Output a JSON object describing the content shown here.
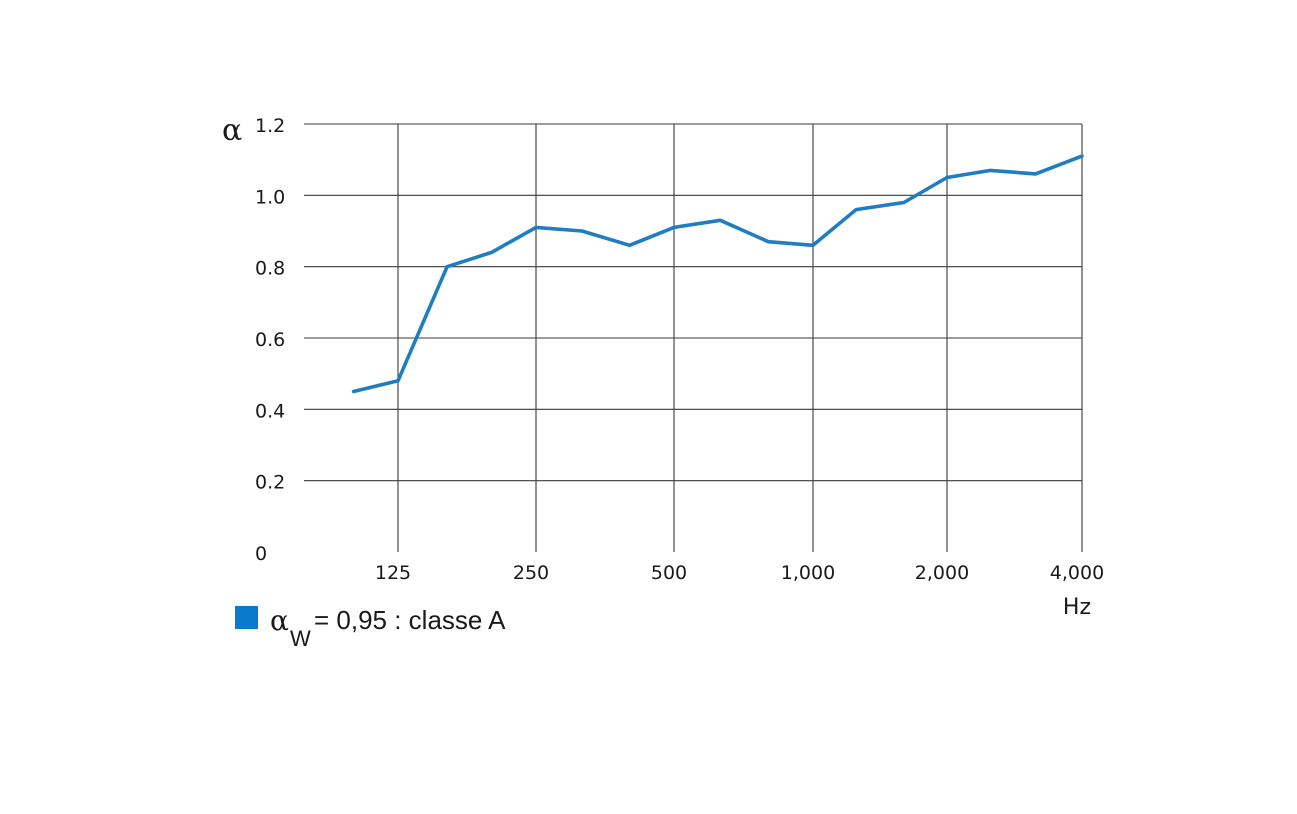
{
  "chart_data": {
    "type": "line",
    "y_symbol": "α",
    "xlabel": "Hz",
    "x_tick_labels": [
      "125",
      "250",
      "500",
      "1,000",
      "2,000",
      "4,000"
    ],
    "y_tick_labels": [
      "0",
      "0.2",
      "0.4",
      "0.6",
      "0.8",
      "1.0",
      "1.2"
    ],
    "ylim": [
      0,
      1.2
    ],
    "x_scale": "log (third-octave bands)",
    "grid": true,
    "series": [
      {
        "color": "#1f7ec2",
        "x": [
          100,
          125,
          160,
          200,
          250,
          315,
          400,
          500,
          630,
          800,
          1000,
          1250,
          1600,
          2000,
          2500,
          3150,
          4000
        ],
        "values": [
          0.45,
          0.48,
          0.8,
          0.84,
          0.91,
          0.9,
          0.86,
          0.91,
          0.93,
          0.87,
          0.86,
          0.96,
          0.98,
          1.05,
          1.07,
          1.06,
          1.11
        ]
      }
    ],
    "legend": {
      "position": "bottom-left",
      "marker_color": "#0a7acc",
      "symbol": "α",
      "subscript": "W",
      "text": "= 0,95 : classe A"
    }
  }
}
